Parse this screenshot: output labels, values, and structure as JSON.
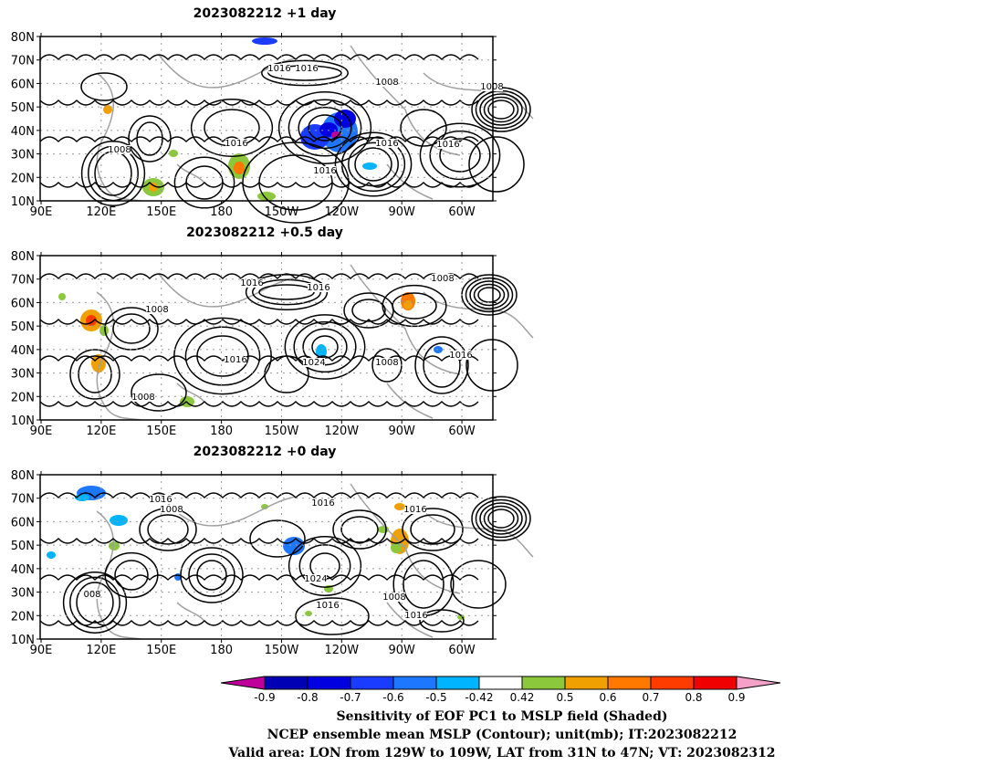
{
  "panels": [
    {
      "title": "2023082212 +1 day",
      "contour_labels": [
        "1016",
        "1016",
        "1016",
        "1008",
        "1016",
        "1008",
        "1016",
        "1008",
        "1016"
      ]
    },
    {
      "title": "2023082212 +0.5 day",
      "contour_labels": [
        "1016",
        "1016",
        "1008",
        "1008",
        "1016",
        "1024",
        "1008",
        "1016",
        "1008"
      ]
    },
    {
      "title": "2023082212 +0 day",
      "contour_labels": [
        "1016",
        "1008",
        "1016",
        "1016",
        "1024",
        "1016",
        "1008",
        "1016",
        "008"
      ]
    }
  ],
  "lat_labels": [
    "80N",
    "70N",
    "60N",
    "50N",
    "40N",
    "30N",
    "20N",
    "10N"
  ],
  "lon_labels": [
    "90E",
    "120E",
    "150E",
    "180",
    "150W",
    "120W",
    "90W",
    "60W"
  ],
  "colorbar": {
    "labels": [
      "-0.9",
      "-0.8",
      "-0.7",
      "-0.6",
      "-0.5",
      "-0.42",
      "0.42",
      "0.5",
      "0.6",
      "0.7",
      "0.8",
      "0.9"
    ],
    "colors": {
      "below": "#c0009a",
      "bins": [
        "#0000b4",
        "#0000e0",
        "#1a3cff",
        "#1e78ff",
        "#00b4ff",
        "#ffffff",
        "#8cc83c",
        "#f0a000",
        "#ff7800",
        "#ff3c00",
        "#f00000"
      ],
      "above": "#f5a0c8"
    }
  },
  "caption": {
    "line1": "Sensitivity of EOF PC1 to MSLP field (Shaded)",
    "line2": "NCEP ensemble mean MSLP (Contour); unit(mb); IT:2023082212",
    "line3": "Valid area: LON from 129W to 109W, LAT from 31N to 47N; VT: 2023082312"
  },
  "style": {
    "contour_color": "#000000",
    "coast_color": "#a0a0a0",
    "grid_color": "#999999"
  }
}
